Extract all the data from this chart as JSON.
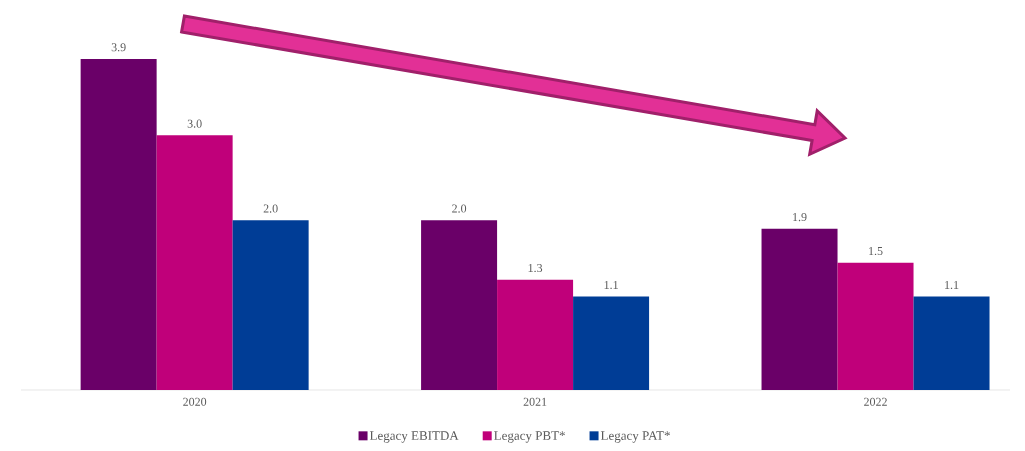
{
  "chart_data": {
    "type": "bar",
    "categories": [
      "2020",
      "2021",
      "2022"
    ],
    "series": [
      {
        "name": "Legacy EBITDA",
        "color": "#6a0068",
        "values": [
          3.9,
          2.0,
          1.9
        ],
        "value_labels": [
          "3.9",
          "2.0",
          "1.9"
        ]
      },
      {
        "name": "Legacy PBT*",
        "color": "#c0007a",
        "values": [
          3.0,
          1.3,
          1.5
        ],
        "value_labels": [
          "3.0",
          "1.3",
          "1.5"
        ]
      },
      {
        "name": "Legacy PAT*",
        "color": "#003d96",
        "values": [
          2.0,
          1.1,
          1.1
        ],
        "value_labels": [
          "2.0",
          "1.1",
          "1.1"
        ]
      }
    ],
    "legend": "bottom",
    "grid": false
  }
}
